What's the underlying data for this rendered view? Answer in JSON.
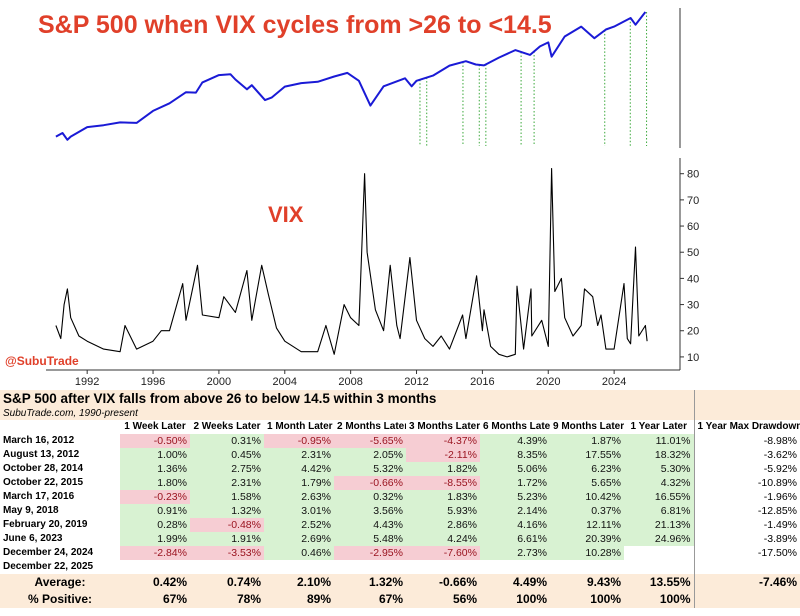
{
  "chart_data": [
    {
      "type": "line",
      "title": "S&P 500 when VIX cycles from >26 to <14.5",
      "log_y": true,
      "color": "#1a1ad6",
      "xlim": [
        1989.5,
        2028
      ],
      "ylim": [
        250,
        7500
      ],
      "x": [
        1990.1,
        1990.5,
        1990.8,
        1991.0,
        1992.0,
        1993.0,
        1994.0,
        1995.0,
        1996.0,
        1997.0,
        1998.0,
        1998.6,
        1999.0,
        2000.0,
        2000.7,
        2001.0,
        2001.7,
        2002.0,
        2002.8,
        2003.2,
        2004.0,
        2005.0,
        2006.0,
        2007.0,
        2007.8,
        2008.5,
        2009.2,
        2010.0,
        2011.3,
        2011.7,
        2012.0,
        2013.0,
        2014.0,
        2015.0,
        2015.6,
        2016.1,
        2017.0,
        2018.0,
        2018.9,
        2019.5,
        2020.0,
        2020.2,
        2021.0,
        2022.0,
        2022.8,
        2023.5,
        2024.0,
        2025.0,
        2025.3,
        2025.9
      ],
      "values": [
        330,
        360,
        305,
        330,
        415,
        435,
        466,
        460,
        615,
        740,
        970,
        960,
        1230,
        1470,
        1500,
        1320,
        1040,
        1150,
        800,
        850,
        1110,
        1210,
        1250,
        1420,
        1550,
        1280,
        700,
        1120,
        1360,
        1120,
        1280,
        1450,
        1850,
        2060,
        1900,
        1860,
        2250,
        2700,
        2400,
        2950,
        3250,
        2300,
        3750,
        4770,
        3600,
        4450,
        4770,
        5880,
        5000,
        6800
      ],
      "markers_x": [
        2012.21,
        2012.62,
        2014.82,
        2015.81,
        2016.21,
        2018.35,
        2019.14,
        2023.43,
        2024.98,
        2025.97
      ],
      "marker_color": "#3aa83a"
    },
    {
      "type": "line",
      "title": "VIX",
      "color": "#000000",
      "xlim": [
        1989.5,
        2028
      ],
      "ylim": [
        5,
        86
      ],
      "yticks": [
        10,
        20,
        30,
        40,
        50,
        60,
        70,
        80
      ],
      "xticks": [
        1992,
        1996,
        2000,
        2004,
        2008,
        2012,
        2016,
        2020,
        2024
      ],
      "x": [
        1990.1,
        1990.4,
        1990.6,
        1990.8,
        1991.0,
        1991.5,
        1992.0,
        1993.0,
        1994.0,
        1994.3,
        1995.0,
        1996.0,
        1996.5,
        1997.0,
        1997.8,
        1998.0,
        1998.7,
        1999.0,
        2000.0,
        2000.3,
        2001.0,
        2001.7,
        2002.0,
        2002.6,
        2003.0,
        2003.5,
        2004.0,
        2005.0,
        2006.0,
        2006.5,
        2007.0,
        2007.6,
        2008.0,
        2008.5,
        2008.85,
        2009.0,
        2009.5,
        2010.0,
        2010.4,
        2010.8,
        2011.0,
        2011.6,
        2012.0,
        2012.5,
        2013.0,
        2013.5,
        2014.0,
        2014.8,
        2015.0,
        2015.65,
        2016.0,
        2016.1,
        2016.5,
        2017.0,
        2017.5,
        2018.0,
        2018.1,
        2018.5,
        2018.95,
        2019.0,
        2019.6,
        2020.0,
        2020.2,
        2020.4,
        2020.8,
        2021.0,
        2021.5,
        2022.0,
        2022.2,
        2022.7,
        2023.0,
        2023.2,
        2023.5,
        2024.0,
        2024.6,
        2024.8,
        2025.0,
        2025.3,
        2025.5,
        2025.9,
        2026.0
      ],
      "values": [
        22,
        17,
        30,
        36,
        25,
        18,
        16,
        13,
        12,
        22,
        13,
        16,
        20,
        20,
        38,
        24,
        45,
        26,
        25,
        33,
        27,
        43,
        24,
        45,
        34,
        21,
        16,
        12,
        12,
        22,
        11,
        30,
        25,
        22,
        80,
        50,
        28,
        20,
        45,
        22,
        17,
        48,
        24,
        17,
        14,
        18,
        13,
        26,
        17,
        41,
        20,
        28,
        14,
        11,
        10,
        11,
        37,
        13,
        36,
        18,
        24,
        14,
        82,
        35,
        40,
        25,
        18,
        22,
        36,
        33,
        22,
        26,
        13,
        13,
        38,
        17,
        15,
        52,
        18,
        22,
        16
      ]
    }
  ],
  "watermark": "@SubuTrade",
  "table": {
    "title": "S&P 500 after VIX falls from above 26 to below 14.5 within 3 months",
    "subtitle": "SubuTrade.com, 1990-present",
    "columns": [
      "1 Week Later",
      "2 Weeks Later",
      "1 Month Later",
      "2 Months Later",
      "3 Months Later",
      "6 Months Later",
      "9 Months Later",
      "1 Year Later",
      "1 Year Max Drawdown"
    ],
    "rows": [
      {
        "date": "March 16, 2012",
        "cells": [
          "-0.50%",
          "0.31%",
          "-0.95%",
          "-5.65%",
          "-4.37%",
          "4.39%",
          "1.87%",
          "11.01%",
          "-8.98%"
        ]
      },
      {
        "date": "August 13, 2012",
        "cells": [
          "1.00%",
          "0.45%",
          "2.31%",
          "2.05%",
          "-2.11%",
          "8.35%",
          "17.55%",
          "18.32%",
          "-3.62%"
        ]
      },
      {
        "date": "October 28, 2014",
        "cells": [
          "1.36%",
          "2.75%",
          "4.42%",
          "5.32%",
          "1.82%",
          "5.06%",
          "6.23%",
          "5.30%",
          "-5.92%"
        ]
      },
      {
        "date": "October 22, 2015",
        "cells": [
          "1.80%",
          "2.31%",
          "1.79%",
          "-0.66%",
          "-8.55%",
          "1.72%",
          "5.65%",
          "4.32%",
          "-10.89%"
        ]
      },
      {
        "date": "March 17, 2016",
        "cells": [
          "-0.23%",
          "1.58%",
          "2.63%",
          "0.32%",
          "1.83%",
          "5.23%",
          "10.42%",
          "16.55%",
          "-1.96%"
        ]
      },
      {
        "date": "May 9, 2018",
        "cells": [
          "0.91%",
          "1.32%",
          "3.01%",
          "3.56%",
          "5.93%",
          "2.14%",
          "0.37%",
          "6.81%",
          "-12.85%"
        ]
      },
      {
        "date": "February 20, 2019",
        "cells": [
          "0.28%",
          "-0.48%",
          "2.52%",
          "4.43%",
          "2.86%",
          "4.16%",
          "12.11%",
          "21.13%",
          "-1.49%"
        ]
      },
      {
        "date": "June 6, 2023",
        "cells": [
          "1.99%",
          "1.91%",
          "2.69%",
          "5.48%",
          "4.24%",
          "6.61%",
          "20.39%",
          "24.96%",
          "-3.89%"
        ]
      },
      {
        "date": "December 24, 2024",
        "cells": [
          "-2.84%",
          "-3.53%",
          "0.46%",
          "-2.95%",
          "-7.60%",
          "2.73%",
          "10.28%",
          null,
          "-17.50%"
        ]
      },
      {
        "date": "December 22, 2025",
        "cells": [
          null,
          null,
          null,
          null,
          null,
          null,
          null,
          null,
          null
        ]
      }
    ],
    "summary": [
      {
        "label": "Average:",
        "cells": [
          "0.42%",
          "0.74%",
          "2.10%",
          "1.32%",
          "-0.66%",
          "4.49%",
          "9.43%",
          "13.55%",
          "-7.46%"
        ]
      },
      {
        "label": "% Positive:",
        "cells": [
          "67%",
          "78%",
          "89%",
          "67%",
          "56%",
          "100%",
          "100%",
          "100%",
          null
        ]
      }
    ]
  }
}
